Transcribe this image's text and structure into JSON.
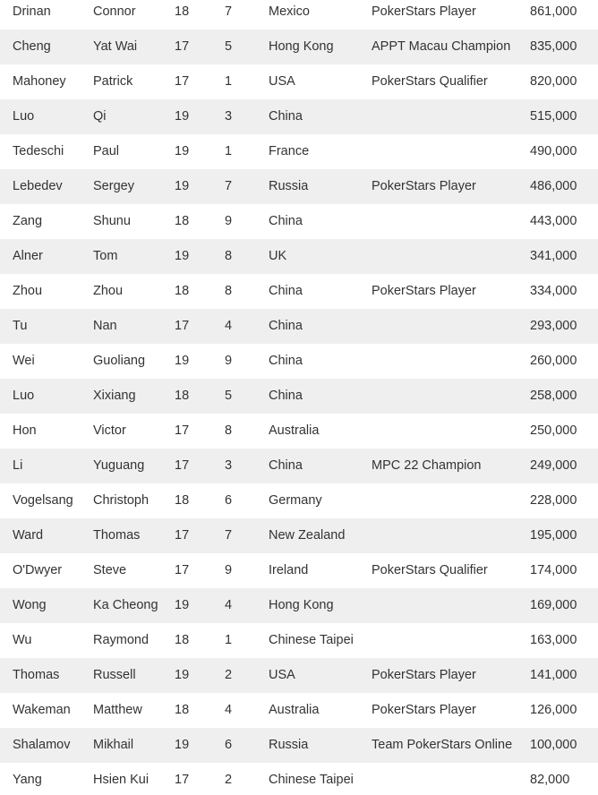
{
  "table": {
    "rows": [
      {
        "last": "Drinan",
        "first": "Connor",
        "table": "18",
        "seat": "7",
        "country": "Mexico",
        "note": "PokerStars Player",
        "chips": "861,000"
      },
      {
        "last": "Cheng",
        "first": "Yat Wai",
        "table": "17",
        "seat": "5",
        "country": "Hong Kong",
        "note": "APPT Macau Champion",
        "chips": "835,000"
      },
      {
        "last": "Mahoney",
        "first": "Patrick",
        "table": "17",
        "seat": "1",
        "country": "USA",
        "note": "PokerStars Qualifier",
        "chips": "820,000"
      },
      {
        "last": "Luo",
        "first": "Qi",
        "table": "19",
        "seat": "3",
        "country": "China",
        "chips": "515,000"
      },
      {
        "last": "Tedeschi",
        "first": "Paul",
        "table": "19",
        "seat": "1",
        "country": "France",
        "chips": "490,000"
      },
      {
        "last": "Lebedev",
        "first": "Sergey",
        "table": "19",
        "seat": "7",
        "country": "Russia",
        "note": "PokerStars Player",
        "chips": "486,000"
      },
      {
        "last": "Zang",
        "first": "Shunu",
        "table": "18",
        "seat": "9",
        "country": "China",
        "chips": "443,000"
      },
      {
        "last": "Alner",
        "first": "Tom",
        "table": "19",
        "seat": "8",
        "country": "UK",
        "chips": "341,000"
      },
      {
        "last": "Zhou",
        "first": "Zhou",
        "table": "18",
        "seat": "8",
        "country": "China",
        "note": "PokerStars Player",
        "chips": "334,000"
      },
      {
        "last": "Tu",
        "first": "Nan",
        "table": "17",
        "seat": "4",
        "country": "China",
        "chips": "293,000"
      },
      {
        "last": "Wei",
        "first": "Guoliang",
        "table": "19",
        "seat": "9",
        "country": "China",
        "chips": "260,000"
      },
      {
        "last": "Luo",
        "first": "Xixiang",
        "table": "18",
        "seat": "5",
        "country": "China",
        "chips": "258,000"
      },
      {
        "last": "Hon",
        "first": "Victor",
        "table": "17",
        "seat": "8",
        "country": "Australia",
        "chips": "250,000"
      },
      {
        "last": "Li",
        "first": "Yuguang",
        "table": "17",
        "seat": "3",
        "country": "China",
        "note": "MPC 22 Champion",
        "chips": "249,000"
      },
      {
        "last": "Vogelsang",
        "first": "Christoph",
        "table": "18",
        "seat": "6",
        "country": "Germany",
        "chips": "228,000"
      },
      {
        "last": "Ward",
        "first": "Thomas",
        "table": "17",
        "seat": "7",
        "country": "New Zealand",
        "chips": "195,000"
      },
      {
        "last": "O'Dwyer",
        "first": "Steve",
        "table": "17",
        "seat": "9",
        "country": "Ireland",
        "note": "PokerStars Qualifier",
        "chips": "174,000"
      },
      {
        "last": "Wong",
        "first": "Ka Cheong",
        "table": "19",
        "seat": "4",
        "country": "Hong Kong",
        "chips": "169,000"
      },
      {
        "last": "Wu",
        "first": "Raymond",
        "table": "18",
        "seat": "1",
        "country": "Chinese Taipei",
        "chips": "163,000"
      },
      {
        "last": "Thomas",
        "first": "Russell",
        "table": "19",
        "seat": "2",
        "country": "USA",
        "note": "PokerStars Player",
        "chips": "141,000"
      },
      {
        "last": "Wakeman",
        "first": "Matthew",
        "table": "18",
        "seat": "4",
        "country": "Australia",
        "note": "PokerStars Player",
        "chips": "126,000"
      },
      {
        "last": "Shalamov",
        "first": "Mikhail",
        "table": "19",
        "seat": "6",
        "country": "Russia",
        "note": "Team PokerStars Online",
        "chips": "100,000"
      },
      {
        "last": "Yang",
        "first": "Hsien Kui",
        "table": "17",
        "seat": "2",
        "country": "Chinese Taipei",
        "chips": "82,000"
      }
    ]
  }
}
